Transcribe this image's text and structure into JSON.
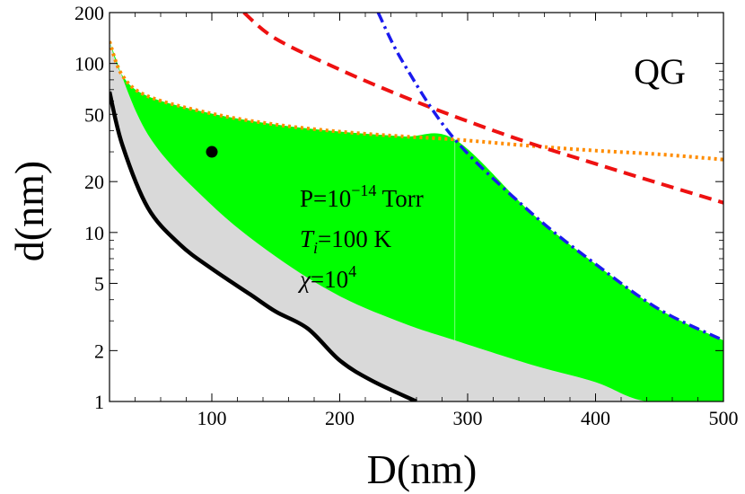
{
  "chart_data": {
    "type": "area",
    "xlabel": "D(nm)",
    "ylabel": "d(nm)",
    "xlim": [
      20,
      500
    ],
    "ylim": [
      1,
      200
    ],
    "yscale": "log",
    "x_ticks": [
      {
        "value": 100,
        "label": "100"
      },
      {
        "value": 200,
        "label": "200"
      },
      {
        "value": 300,
        "label": "300"
      },
      {
        "value": 400,
        "label": "400"
      },
      {
        "value": 500,
        "label": "500"
      }
    ],
    "y_ticks": [
      {
        "value": 1,
        "label": "1"
      },
      {
        "value": 2,
        "label": "2"
      },
      {
        "value": 5,
        "label": "5"
      },
      {
        "value": 10,
        "label": "10"
      },
      {
        "value": 20,
        "label": "20"
      },
      {
        "value": 50,
        "label": "50"
      },
      {
        "value": 100,
        "label": "100"
      },
      {
        "value": 200,
        "label": "200"
      }
    ],
    "panel_label": "QG",
    "annotations": {
      "pressure": {
        "prefix": "P=10",
        "exponent": "−14",
        "suffix": " Torr"
      },
      "temperature": {
        "symbol": "T",
        "subscript": "i",
        "text": "=100 K"
      },
      "chi": {
        "symbol": "χ",
        "base": "=10",
        "exponent": "4"
      }
    },
    "colors": {
      "green_region": "#00ff00",
      "gray_region": "#d9d9d9",
      "black_line": "#000000",
      "orange_dotted": "#ff8c00",
      "red_dashed": "#ee1111",
      "blue_dashdot": "#1a1aee",
      "marker": "#000000"
    },
    "series": [
      {
        "style": "solid-black",
        "x": [
          20,
          30,
          50,
          75,
          100,
          130,
          150,
          175,
          200,
          225,
          260
        ],
        "y": [
          68,
          33,
          14,
          8.5,
          6.1,
          4.3,
          3.4,
          2.7,
          1.75,
          1.33,
          1.0
        ]
      },
      {
        "style": "dotted-orange",
        "x": [
          20,
          30,
          50,
          100,
          150,
          200,
          250,
          290,
          350,
          400,
          450,
          500
        ],
        "y": [
          135,
          85,
          64,
          50.5,
          43.5,
          39.5,
          37,
          35.5,
          32.5,
          30.5,
          29,
          27
        ]
      },
      {
        "style": "dashed-red",
        "x": [
          125,
          150,
          200,
          250,
          300,
          350,
          400,
          450,
          500
        ],
        "y": [
          200,
          140,
          92,
          63.5,
          45.5,
          33.5,
          25.5,
          19.5,
          15
        ]
      },
      {
        "style": "dashdot-blue",
        "x": [
          230,
          250,
          290,
          350,
          400,
          450,
          500
        ],
        "y": [
          200,
          100,
          35.5,
          13,
          6.5,
          3.5,
          2.3
        ]
      },
      {
        "style": "green-region-lower-boundary",
        "x": [
          20,
          50,
          100,
          150,
          200,
          250,
          290,
          350,
          400,
          440,
          500
        ],
        "y": [
          135,
          38,
          14.5,
          7.2,
          4.2,
          2.9,
          2.3,
          1.65,
          1.3,
          1.0,
          1.0
        ]
      }
    ],
    "points": [
      {
        "x": 100,
        "y": 30
      }
    ]
  }
}
